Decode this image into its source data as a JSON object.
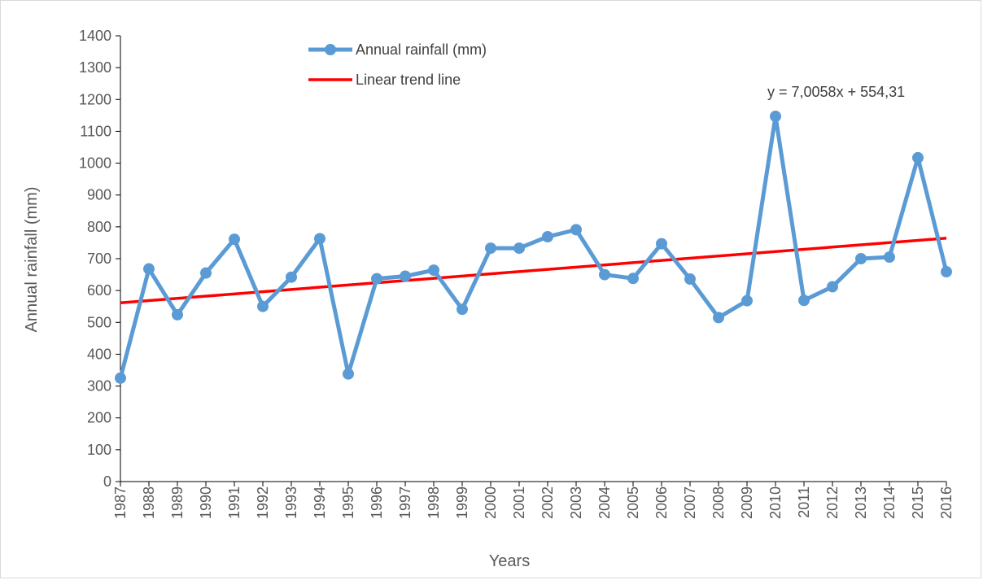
{
  "chart_data": {
    "type": "line",
    "title": "",
    "xlabel": "Years",
    "ylabel": "Annual rainfall (mm)",
    "ylim": [
      0,
      1400
    ],
    "yticks": [
      0,
      100,
      200,
      300,
      400,
      500,
      600,
      700,
      800,
      900,
      1000,
      1100,
      1200,
      1300,
      1400
    ],
    "grid": false,
    "legend_position": "top-center",
    "categories": [
      "1987",
      "1988",
      "1989",
      "1990",
      "1991",
      "1992",
      "1993",
      "1994",
      "1995",
      "1996",
      "1997",
      "1998",
      "1999",
      "2000",
      "2001",
      "2002",
      "2003",
      "2004",
      "2005",
      "2006",
      "2007",
      "2008",
      "2009",
      "2010",
      "2011",
      "2012",
      "2013",
      "2014",
      "2015",
      "2016"
    ],
    "series": [
      {
        "name": "Annual rainfall (mm)",
        "color": "#5b9bd5",
        "marker": "circle",
        "values": [
          325,
          668,
          524,
          655,
          761,
          550,
          642,
          763,
          338,
          637,
          645,
          664,
          541,
          733,
          733,
          769,
          791,
          650,
          638,
          747,
          636,
          515,
          568,
          1147,
          569,
          612,
          700,
          705,
          1017,
          659
        ]
      },
      {
        "name": "Linear trend line",
        "color": "#ff0000",
        "type": "trendline",
        "slope": 7.0058,
        "intercept": 554.31
      }
    ],
    "annotations": [
      "y = 7,0058x + 554,31"
    ]
  }
}
